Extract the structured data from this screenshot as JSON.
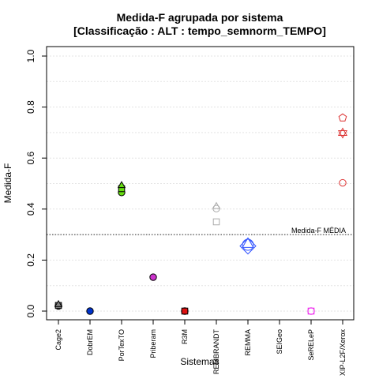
{
  "chart_data": {
    "type": "scatter",
    "title": "Medida-F agrupada por sistema",
    "subtitle": "[Classificação : ALT : tempo_semnorm_TEMPO]",
    "xlabel": "Sistemas",
    "ylabel": "Medida-F",
    "ylim": [
      0,
      1
    ],
    "yticks": [
      "0.0",
      "0.2",
      "0.4",
      "0.6",
      "0.8",
      "1.0"
    ],
    "grid": true,
    "categories": [
      "Cage2",
      "DobrEM",
      "PorTexTO",
      "Priberam",
      "R3M",
      "REMBRANDT",
      "REMMA",
      "SEIGeo",
      "SeRELeP",
      "XIP-L2F/Xerox"
    ],
    "reference_line": {
      "value": 0.3,
      "label": "Medida-F MÉDIA"
    },
    "points": [
      {
        "category": "Cage2",
        "y": 0.02,
        "shape": "circle",
        "fill": "#7f7f7f",
        "stroke": "#000000"
      },
      {
        "category": "Cage2",
        "y": 0.022,
        "shape": "square",
        "fill": "#7f7f7f",
        "stroke": "#000000"
      },
      {
        "category": "Cage2",
        "y": 0.025,
        "shape": "triangle",
        "fill": "#7f7f7f",
        "stroke": "#000000"
      },
      {
        "category": "DobrEM",
        "y": 0.0,
        "shape": "circle",
        "fill": "#0033cc",
        "stroke": "#000000"
      },
      {
        "category": "PorTexTO",
        "y": 0.465,
        "shape": "circle",
        "fill": "#66dd11",
        "stroke": "#000000"
      },
      {
        "category": "PorTexTO",
        "y": 0.48,
        "shape": "square",
        "fill": "#66dd11",
        "stroke": "#000000"
      },
      {
        "category": "PorTexTO",
        "y": 0.492,
        "shape": "triangle",
        "fill": "#66dd11",
        "stroke": "#000000"
      },
      {
        "category": "Priberam",
        "y": 0.133,
        "shape": "circle",
        "fill": "#cc33cc",
        "stroke": "#000000"
      },
      {
        "category": "R3M",
        "y": 0.0,
        "shape": "circle",
        "fill": "#dd1111",
        "stroke": "#000000"
      },
      {
        "category": "R3M",
        "y": 0.0,
        "shape": "square",
        "fill": "#dd1111",
        "stroke": "#000000"
      },
      {
        "category": "REMBRANDT",
        "y": 0.35,
        "shape": "square",
        "fill": "none",
        "stroke": "#aaaaaa"
      },
      {
        "category": "REMBRANDT",
        "y": 0.402,
        "shape": "circle",
        "fill": "none",
        "stroke": "#aaaaaa"
      },
      {
        "category": "REMBRANDT",
        "y": 0.41,
        "shape": "triangle",
        "fill": "none",
        "stroke": "#aaaaaa"
      },
      {
        "category": "REMMA",
        "y": 0.255,
        "shape": "diamond-large",
        "fill": "none",
        "stroke": "#3355ff"
      },
      {
        "category": "REMMA",
        "y": 0.26,
        "shape": "circle-large",
        "fill": "none",
        "stroke": "#3355ff"
      },
      {
        "category": "REMMA",
        "y": 0.262,
        "shape": "triangle-large",
        "fill": "none",
        "stroke": "#3355ff"
      },
      {
        "category": "SeRELeP",
        "y": 0.0,
        "shape": "circle",
        "fill": "none",
        "stroke": "#ee33ee"
      },
      {
        "category": "SeRELeP",
        "y": 0.0,
        "shape": "square",
        "fill": "none",
        "stroke": "#ee33ee"
      },
      {
        "category": "XIP-L2F/Xerox",
        "y": 0.503,
        "shape": "circle",
        "fill": "none",
        "stroke": "#dd3333"
      },
      {
        "category": "XIP-L2F/Xerox",
        "y": 0.698,
        "shape": "star",
        "fill": "none",
        "stroke": "#dd3333"
      },
      {
        "category": "XIP-L2F/Xerox",
        "y": 0.758,
        "shape": "pentagon",
        "fill": "none",
        "stroke": "#dd3333"
      }
    ]
  }
}
